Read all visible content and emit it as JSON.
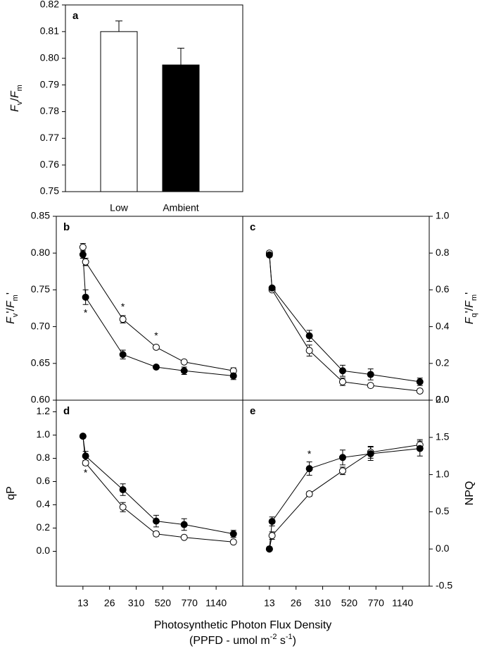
{
  "xlabel": {
    "line1": "Photosynthetic Photon Flux Density",
    "line2": [
      {
        "text": "(PPFD - umol m"
      },
      {
        "text": "-2",
        "style": "sup"
      },
      {
        "text": " s"
      },
      {
        "text": "-1",
        "style": "sup"
      },
      {
        "text": ")"
      }
    ]
  },
  "chart_data": [
    {
      "type": "bar",
      "label": "a",
      "ylabel": [
        {
          "text": "F",
          "style": "italic"
        },
        {
          "text": "v",
          "style": "sub"
        },
        {
          "text": "/"
        },
        {
          "text": "F",
          "style": "italic"
        },
        {
          "text": "m",
          "style": "sub"
        }
      ],
      "categories": [
        "Low",
        "Ambient"
      ],
      "values": [
        0.81,
        0.7975
      ],
      "errors": [
        0.004,
        0.0063
      ],
      "colors": [
        "#ffffff",
        "#000000"
      ],
      "ylim": [
        0.75,
        0.82
      ],
      "yticks": [
        0.75,
        0.76,
        0.77,
        0.78,
        0.79,
        {
          "value": 0.8,
          "label": "0.80"
        },
        0.81,
        0.82
      ]
    },
    {
      "type": "line",
      "label": "b",
      "yaxis_side": "left",
      "ylabel": [
        {
          "text": "F",
          "style": "italic"
        },
        {
          "text": "v",
          "style": "sub"
        },
        {
          "text": "'/"
        },
        {
          "text": "F",
          "style": "italic"
        },
        {
          "text": "m",
          "style": "sub"
        },
        {
          "text": "'"
        }
      ],
      "x": [
        1,
        1.1,
        2.5,
        3.75,
        4.8,
        6.65
      ],
      "xlim": [
        0,
        7
      ],
      "ylim": [
        0.6,
        0.85
      ],
      "yticks": [
        {
          "value": 0.6,
          "label": "0.60"
        },
        0.65,
        {
          "value": 0.7,
          "label": "0.70"
        },
        0.75,
        {
          "value": 0.8,
          "label": "0.80"
        },
        0.85
      ],
      "series": [
        {
          "color": "#ffffff",
          "values": [
            0.808,
            0.788,
            0.71,
            0.672,
            0.652,
            0.64
          ],
          "errors": [
            0.005,
            0.005,
            0.005,
            0.002,
            0.002,
            0.004
          ]
        },
        {
          "color": "#000000",
          "values": [
            0.798,
            0.74,
            0.662,
            0.645,
            0.64,
            0.633
          ],
          "errors": [
            0.005,
            0.01,
            0.006,
            0.002,
            0.005,
            0.005
          ]
        }
      ],
      "annotations": [
        {
          "text": "*",
          "x": 1.1,
          "y": 0.718
        },
        {
          "text": "*",
          "x": 2.5,
          "y": 0.726
        },
        {
          "text": "*",
          "x": 3.75,
          "y": 0.687
        }
      ]
    },
    {
      "type": "line",
      "label": "c",
      "yaxis_side": "right",
      "ylabel": [
        {
          "text": "F",
          "style": "italic"
        },
        {
          "text": "q",
          "style": "sub"
        },
        {
          "text": "'/"
        },
        {
          "text": "F",
          "style": "italic"
        },
        {
          "text": "m",
          "style": "sub"
        },
        {
          "text": "'"
        }
      ],
      "x": [
        1,
        1.1,
        2.5,
        3.75,
        4.8,
        6.65
      ],
      "xlim": [
        0,
        7
      ],
      "ylim": [
        0,
        1
      ],
      "yticks": [
        {
          "value": 0,
          "label": "0.0"
        },
        0.2,
        0.4,
        0.6,
        0.8,
        {
          "value": 1,
          "label": "1.0"
        }
      ],
      "series": [
        {
          "color": "#ffffff",
          "values": [
            0.8,
            0.6,
            0.27,
            0.1,
            0.08,
            0.05
          ],
          "errors": [
            0.01,
            0.01,
            0.03,
            0.02,
            0.01,
            0.01
          ]
        },
        {
          "color": "#000000",
          "values": [
            0.79,
            0.61,
            0.35,
            0.16,
            0.14,
            0.1
          ],
          "errors": [
            0.01,
            0.01,
            0.03,
            0.03,
            0.03,
            0.02
          ]
        }
      ]
    },
    {
      "type": "line",
      "label": "d",
      "yaxis_side": "left",
      "ylabel": [
        {
          "text": "qP"
        }
      ],
      "x": [
        1,
        1.1,
        2.5,
        3.75,
        4.8,
        6.65
      ],
      "xlim": [
        0,
        7
      ],
      "xticks": [
        {
          "value": 1,
          "label": "13"
        },
        {
          "value": 2,
          "label": "26"
        },
        {
          "value": 3,
          "label": "310"
        },
        {
          "value": 4,
          "label": "520"
        },
        {
          "value": 5,
          "label": "770"
        },
        {
          "value": 6,
          "label": "1140"
        }
      ],
      "ylim": [
        -0.3,
        1.3
      ],
      "yticks": [
        {
          "value": 0,
          "label": "0.0"
        },
        0.2,
        0.4,
        0.6,
        0.8,
        {
          "value": 1,
          "label": "1.0"
        },
        1.2
      ],
      "series": [
        {
          "color": "#ffffff",
          "values": [
            0.99,
            0.76,
            0.38,
            0.15,
            0.12,
            0.08
          ],
          "errors": [
            0.01,
            0.02,
            0.04,
            0.02,
            0.01,
            0.01
          ]
        },
        {
          "color": "#000000",
          "values": [
            0.99,
            0.82,
            0.53,
            0.26,
            0.23,
            0.15
          ],
          "errors": [
            0.01,
            0.04,
            0.05,
            0.05,
            0.05,
            0.03
          ]
        }
      ],
      "annotations": [
        {
          "text": "*",
          "x": 1.1,
          "y": 0.67
        }
      ]
    },
    {
      "type": "line",
      "label": "e",
      "yaxis_side": "right",
      "ylabel": [
        {
          "text": "NPQ"
        }
      ],
      "x": [
        1,
        1.1,
        2.5,
        3.75,
        4.8,
        6.65
      ],
      "xlim": [
        0,
        7
      ],
      "xticks": [
        {
          "value": 1,
          "label": "13"
        },
        {
          "value": 2,
          "label": "26"
        },
        {
          "value": 3,
          "label": "310"
        },
        {
          "value": 4,
          "label": "520"
        },
        {
          "value": 5,
          "label": "770"
        },
        {
          "value": 6,
          "label": "1140"
        }
      ],
      "ylim": [
        -0.5,
        2
      ],
      "yticks": [
        -0.5,
        {
          "value": 0,
          "label": "0.0"
        },
        0.5,
        {
          "value": 1,
          "label": "1.0"
        },
        1.5,
        {
          "value": 2,
          "label": "2.0"
        }
      ],
      "series": [
        {
          "color": "#ffffff",
          "values": [
            0.0,
            0.18,
            0.74,
            1.05,
            1.3,
            1.4
          ],
          "errors": [
            0.02,
            0.05,
            0.03,
            0.05,
            0.08,
            0.07
          ]
        },
        {
          "color": "#000000",
          "values": [
            0.0,
            0.37,
            1.08,
            1.23,
            1.28,
            1.35
          ],
          "errors": [
            0.02,
            0.06,
            0.09,
            0.1,
            0.09,
            0.1
          ]
        }
      ],
      "annotations": [
        {
          "text": "*",
          "x": 2.5,
          "y": 1.27
        }
      ]
    }
  ]
}
